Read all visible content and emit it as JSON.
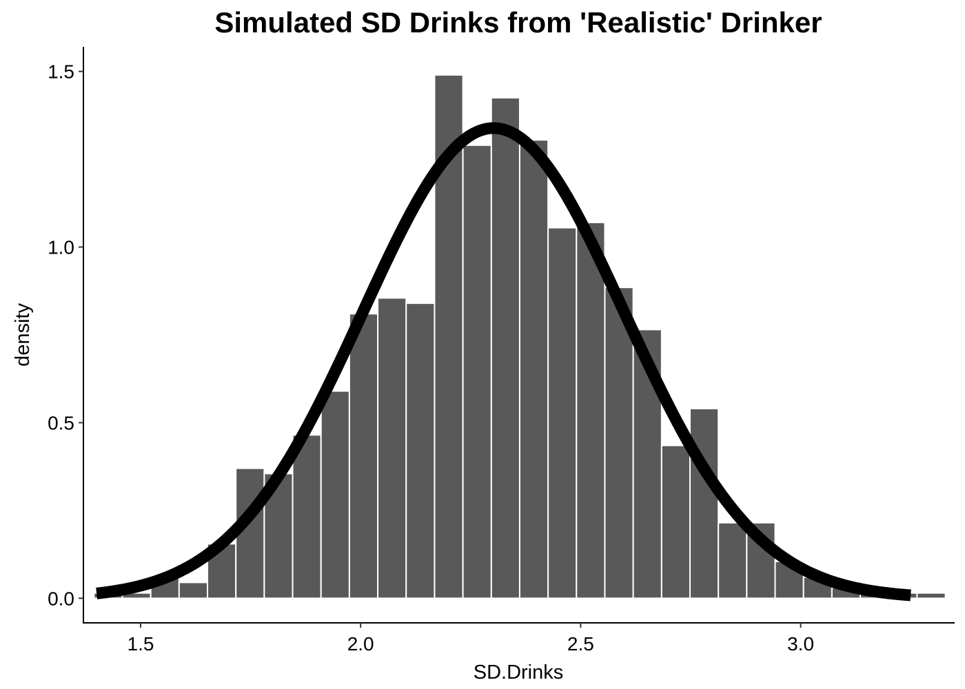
{
  "chart_data": {
    "type": "bar",
    "title": "Simulated SD Drinks from 'Realistic' Drinker",
    "xlabel": "SD.Drinks",
    "ylabel": "density",
    "xlim": [
      1.37,
      3.35
    ],
    "ylim": [
      -0.07,
      1.57
    ],
    "x_ticks": [
      1.5,
      2.0,
      2.5,
      3.0
    ],
    "x_tick_labels": [
      "1.5",
      "2.0",
      "2.5",
      "3.0"
    ],
    "y_ticks": [
      0.0,
      0.5,
      1.0,
      1.5
    ],
    "y_tick_labels": [
      "0.0",
      "0.5",
      "1.0",
      "1.5"
    ],
    "grid": false,
    "bar_color": "#595959",
    "bar_outline_color": "#ffffff",
    "curve_color": "#000000",
    "histogram": {
      "bin_width": 0.0645,
      "bins": [
        {
          "x_start": 1.394,
          "density": 0.015
        },
        {
          "x_start": 1.4585,
          "density": 0.015
        },
        {
          "x_start": 1.523,
          "density": 0.06
        },
        {
          "x_start": 1.5875,
          "density": 0.045
        },
        {
          "x_start": 1.652,
          "density": 0.155
        },
        {
          "x_start": 1.7165,
          "density": 0.37
        },
        {
          "x_start": 1.781,
          "density": 0.355
        },
        {
          "x_start": 1.8455,
          "density": 0.465
        },
        {
          "x_start": 1.91,
          "density": 0.59
        },
        {
          "x_start": 1.9745,
          "density": 0.81
        },
        {
          "x_start": 2.039,
          "density": 0.855
        },
        {
          "x_start": 2.1035,
          "density": 0.84
        },
        {
          "x_start": 2.168,
          "density": 1.49
        },
        {
          "x_start": 2.2325,
          "density": 1.29
        },
        {
          "x_start": 2.297,
          "density": 1.425
        },
        {
          "x_start": 2.3615,
          "density": 1.305
        },
        {
          "x_start": 2.426,
          "density": 1.055
        },
        {
          "x_start": 2.4905,
          "density": 1.07
        },
        {
          "x_start": 2.555,
          "density": 0.885
        },
        {
          "x_start": 2.6195,
          "density": 0.765
        },
        {
          "x_start": 2.684,
          "density": 0.435
        },
        {
          "x_start": 2.7485,
          "density": 0.54
        },
        {
          "x_start": 2.813,
          "density": 0.215
        },
        {
          "x_start": 2.8775,
          "density": 0.215
        },
        {
          "x_start": 2.942,
          "density": 0.105
        },
        {
          "x_start": 3.0065,
          "density": 0.06
        },
        {
          "x_start": 3.071,
          "density": 0.03
        },
        {
          "x_start": 3.1355,
          "density": 0.015
        },
        {
          "x_start": 3.2,
          "density": 0.015
        },
        {
          "x_start": 3.2645,
          "density": 0.015
        }
      ]
    },
    "series": [
      {
        "type": "line",
        "kind": "normal-density",
        "mean": 2.302,
        "sd": 0.298,
        "x_range": [
          1.4,
          3.25
        ]
      }
    ]
  }
}
